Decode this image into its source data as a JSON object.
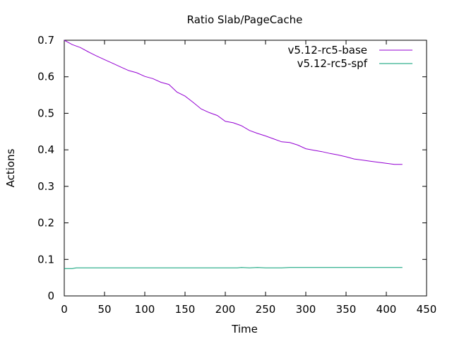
{
  "chart_data": {
    "type": "line",
    "title": "Ratio Slab/PageCache",
    "xlabel": "Time",
    "ylabel": "Actions",
    "xlim": [
      0,
      450
    ],
    "ylim": [
      0,
      0.7
    ],
    "xticks": [
      0,
      50,
      100,
      150,
      200,
      250,
      300,
      350,
      400,
      450
    ],
    "yticks": [
      0,
      0.1,
      0.2,
      0.3,
      0.4,
      0.5,
      0.6,
      0.7
    ],
    "xtick_labels": [
      "0",
      "50",
      "100",
      "150",
      "200",
      "250",
      "300",
      "350",
      "400",
      "450"
    ],
    "ytick_labels": [
      "0",
      "0.1",
      "0.2",
      "0.3",
      "0.4",
      "0.5",
      "0.6",
      "0.7"
    ],
    "legend_position": "top-right",
    "grid": false,
    "series": [
      {
        "name": "v5.12-rc5-base",
        "color": "#9400d3",
        "points": [
          [
            0,
            0.7
          ],
          [
            10,
            0.688
          ],
          [
            20,
            0.68
          ],
          [
            30,
            0.668
          ],
          [
            40,
            0.657
          ],
          [
            50,
            0.647
          ],
          [
            60,
            0.637
          ],
          [
            70,
            0.627
          ],
          [
            80,
            0.617
          ],
          [
            90,
            0.611
          ],
          [
            100,
            0.601
          ],
          [
            110,
            0.595
          ],
          [
            120,
            0.585
          ],
          [
            130,
            0.579
          ],
          [
            140,
            0.558
          ],
          [
            150,
            0.547
          ],
          [
            160,
            0.53
          ],
          [
            170,
            0.512
          ],
          [
            180,
            0.502
          ],
          [
            190,
            0.494
          ],
          [
            200,
            0.478
          ],
          [
            210,
            0.474
          ],
          [
            220,
            0.466
          ],
          [
            230,
            0.453
          ],
          [
            240,
            0.445
          ],
          [
            250,
            0.438
          ],
          [
            260,
            0.43
          ],
          [
            270,
            0.422
          ],
          [
            280,
            0.42
          ],
          [
            290,
            0.413
          ],
          [
            300,
            0.403
          ],
          [
            310,
            0.399
          ],
          [
            320,
            0.395
          ],
          [
            330,
            0.39
          ],
          [
            340,
            0.386
          ],
          [
            350,
            0.381
          ],
          [
            360,
            0.375
          ],
          [
            370,
            0.372
          ],
          [
            380,
            0.369
          ],
          [
            390,
            0.366
          ],
          [
            400,
            0.363
          ],
          [
            410,
            0.36
          ],
          [
            420,
            0.36
          ]
        ]
      },
      {
        "name": "v5.12-rc5-spf",
        "color": "#009e73",
        "points": [
          [
            0,
            0.075
          ],
          [
            10,
            0.075
          ],
          [
            15,
            0.077
          ],
          [
            50,
            0.077
          ],
          [
            100,
            0.077
          ],
          [
            150,
            0.077
          ],
          [
            200,
            0.077
          ],
          [
            215,
            0.077
          ],
          [
            220,
            0.078
          ],
          [
            230,
            0.077
          ],
          [
            240,
            0.078
          ],
          [
            250,
            0.077
          ],
          [
            270,
            0.077
          ],
          [
            280,
            0.078
          ],
          [
            300,
            0.078
          ],
          [
            350,
            0.078
          ],
          [
            400,
            0.078
          ],
          [
            420,
            0.078
          ]
        ]
      }
    ]
  }
}
